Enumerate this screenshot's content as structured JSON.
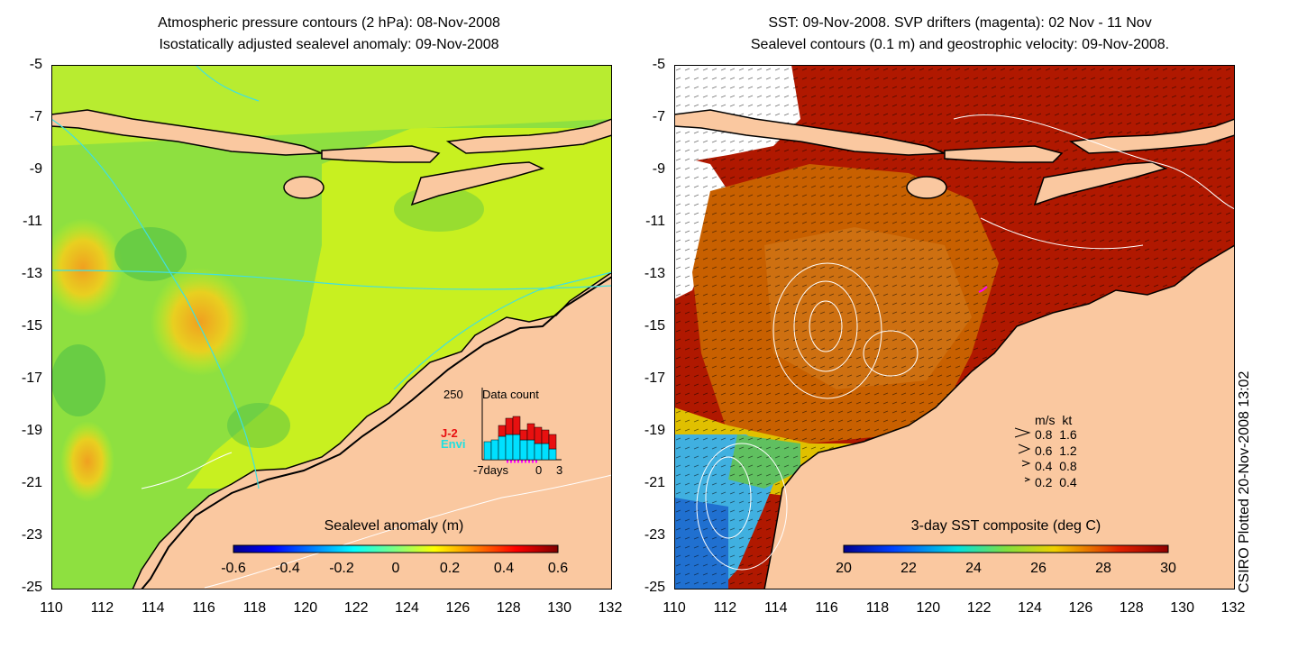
{
  "left_panel": {
    "title_line1": "Atmospheric pressure contours (2 hPa): 08-Nov-2008",
    "title_line2": "Isostatically adjusted sealevel anomaly: 09-Nov-2008",
    "colorbar_label": "Sealevel anomaly (m)",
    "colorbar_ticks": [
      "-0.6",
      "-0.4",
      "-0.2",
      "0",
      "0.2",
      "0.4",
      "0.6"
    ],
    "inset": {
      "max_label": "250",
      "title": "Data count",
      "series_j2": "J-2",
      "series_envi": "Envi",
      "x_left": "-7days",
      "x_mid": "0",
      "x_right": "3"
    }
  },
  "right_panel": {
    "title_line1": "SST: 09-Nov-2008. SVP drifters (magenta): 02 Nov - 11 Nov",
    "title_line2": "Sealevel contours (0.1 m) and geostrophic velocity: 09-Nov-2008.",
    "colorbar_label": "3-day SST composite (deg C)",
    "colorbar_ticks": [
      "20",
      "22",
      "24",
      "26",
      "28",
      "30"
    ],
    "velocity_legend": {
      "header": "m/s  kt",
      "rows": [
        "0.8  1.6",
        "0.6  1.2",
        "0.4  0.8",
        "0.2  0.4"
      ]
    }
  },
  "axes": {
    "x_ticks": [
      "110",
      "112",
      "114",
      "116",
      "118",
      "120",
      "122",
      "124",
      "126",
      "128",
      "130",
      "132"
    ],
    "y_ticks": [
      "-5",
      "-7",
      "-9",
      "-11",
      "-13",
      "-15",
      "-17",
      "-19",
      "-21",
      "-23",
      "-25"
    ],
    "lon_range": [
      110,
      132
    ],
    "lat_range": [
      -25,
      -5
    ]
  },
  "credit": "CSIRO Plotted 20-Nov-2008 13:02",
  "colors": {
    "land": "#fac8a0",
    "ocean_green": "#8ee040",
    "shelf_yellowgreen": "#c8f020",
    "sst_red": "#b01800",
    "sst_orange": "#c86000",
    "sst_blue": "#2090d0",
    "contour_cyan": "#40e0e0",
    "drifter_magenta": "#ff00ff"
  }
}
